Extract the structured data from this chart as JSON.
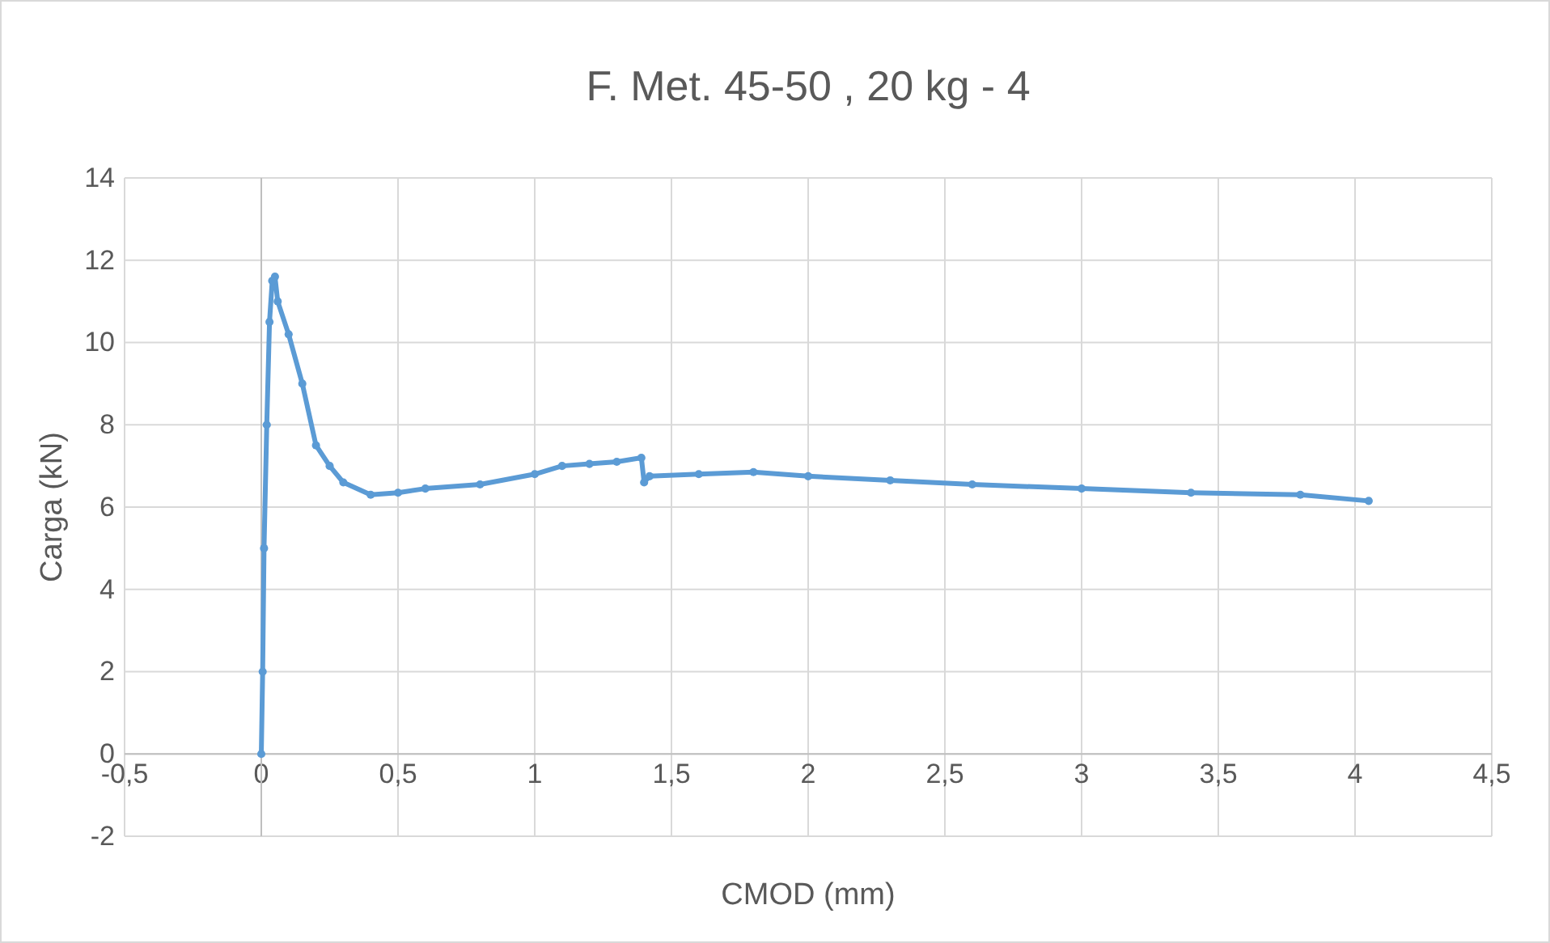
{
  "chart_data": {
    "type": "line",
    "title": "F. Met. 45-50 , 20 kg - 4",
    "xlabel": "CMOD (mm)",
    "ylabel": "Carga (kN)",
    "xlim": [
      -0.5,
      4.5
    ],
    "xticks": [
      {
        "value": -0.5,
        "label": "-0,5"
      },
      0,
      {
        "value": 0.5,
        "label": "0,5"
      },
      1,
      {
        "value": 1.5,
        "label": "1,5"
      },
      2,
      {
        "value": 2.5,
        "label": "2,5"
      },
      3,
      {
        "value": 3.5,
        "label": "3,5"
      },
      4,
      {
        "value": 4.5,
        "label": "4,5"
      }
    ],
    "ylim": [
      -2,
      14
    ],
    "yticks": [
      -2,
      0,
      2,
      4,
      6,
      8,
      10,
      12,
      14
    ],
    "grid": true,
    "marker": "circle",
    "line_style": "solid",
    "series": [
      {
        "color": "#5b9bd5",
        "x": [
          0,
          0.005,
          0.01,
          0.02,
          0.03,
          0.04,
          0.05,
          0.06,
          0.1,
          0.15,
          0.2,
          0.25,
          0.3,
          0.4,
          0.5,
          0.6,
          0.8,
          1.0,
          1.1,
          1.2,
          1.3,
          1.39,
          1.4,
          1.42,
          1.6,
          1.8,
          2.0,
          2.3,
          2.6,
          3.0,
          3.4,
          3.8,
          4.05
        ],
        "values": [
          0,
          2,
          5,
          8,
          10.5,
          11.5,
          11.6,
          11,
          10.2,
          9,
          7.5,
          7,
          6.6,
          6.3,
          6.35,
          6.45,
          6.55,
          6.8,
          7.0,
          7.05,
          7.1,
          7.2,
          6.6,
          6.75,
          6.8,
          6.85,
          6.75,
          6.65,
          6.55,
          6.45,
          6.35,
          6.3,
          6.15
        ]
      }
    ]
  }
}
